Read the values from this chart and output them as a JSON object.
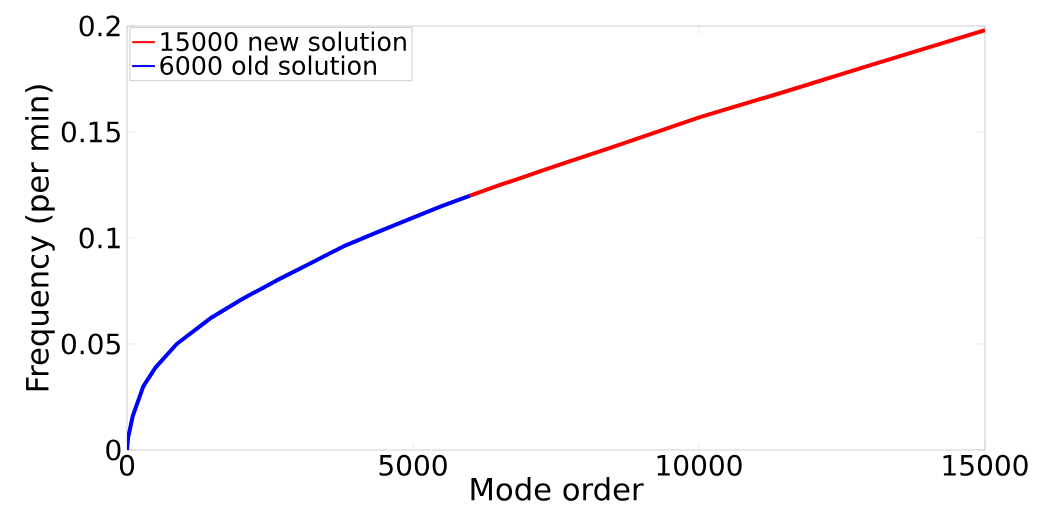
{
  "chart_data": {
    "type": "line",
    "xlabel": "Mode order",
    "ylabel": "Frequency (per min)",
    "xlim": [
      0,
      15000
    ],
    "ylim": [
      0,
      0.2
    ],
    "xticks": [
      0,
      5000,
      10000,
      15000
    ],
    "yticks": [
      0,
      0.05,
      0.1,
      0.15,
      0.2
    ],
    "grid": false,
    "legend": "top left",
    "marker": "none",
    "line_style": "solid",
    "series": [
      {
        "name": "15000 new solution",
        "color": "#ff0000",
        "x": [
          6000,
          6521,
          7500,
          8500,
          10017,
          11500,
          13000,
          15000
        ],
        "values": [
          0.12,
          0.125,
          0.134,
          0.143,
          0.157,
          0.169,
          0.1815,
          0.198
        ]
      },
      {
        "name": "6000 old solution",
        "color": "#0000ff",
        "x": [
          0,
          20,
          100,
          285,
          500,
          869,
          1451,
          2000,
          2617,
          3200,
          3782,
          4400,
          4948,
          5500,
          6000
        ],
        "values": [
          0,
          0.006,
          0.016,
          0.03,
          0.039,
          0.05,
          0.062,
          0.071,
          0.08,
          0.088,
          0.096,
          0.103,
          0.109,
          0.115,
          0.12
        ]
      }
    ]
  }
}
